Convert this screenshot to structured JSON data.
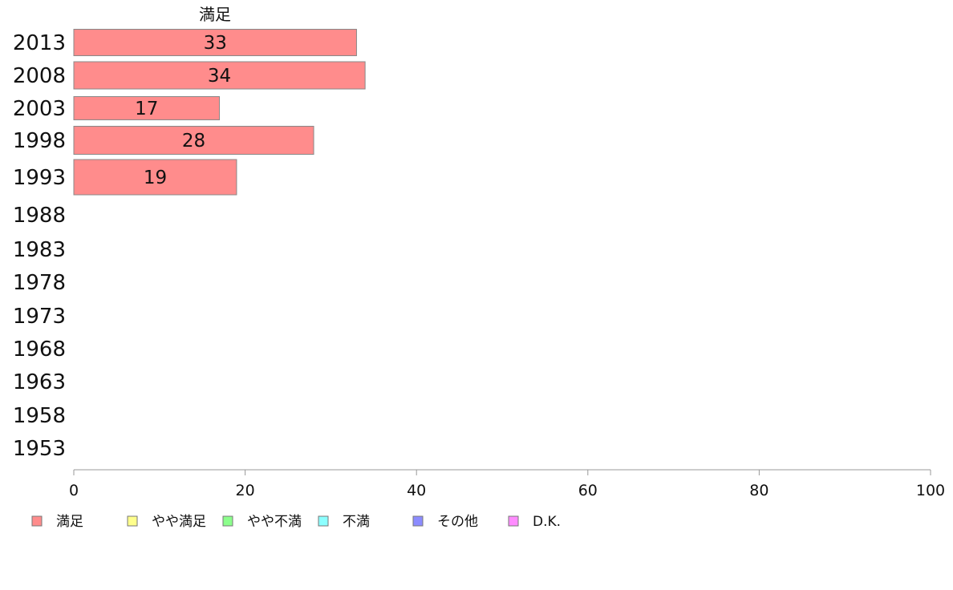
{
  "chart_data": {
    "type": "bar",
    "orientation": "horizontal",
    "title": "満足",
    "categories": [
      "2013",
      "2008",
      "2003",
      "1998",
      "1993",
      "1988",
      "1983",
      "1978",
      "1973",
      "1968",
      "1963",
      "1958",
      "1953"
    ],
    "series": [
      {
        "name": "満足",
        "color": "#ff8c8c",
        "values": [
          33,
          34,
          17,
          28,
          19,
          null,
          null,
          null,
          null,
          null,
          null,
          null,
          null
        ]
      }
    ],
    "xlim": [
      0,
      100
    ],
    "xticks": [
      0,
      20,
      40,
      60,
      80,
      100
    ],
    "grid": false,
    "legend": {
      "position": "bottom",
      "items": [
        {
          "label": "満足",
          "color": "#ff8c8c"
        },
        {
          "label": "やや満足",
          "color": "#ffff8c"
        },
        {
          "label": "やや不満",
          "color": "#8cff8c"
        },
        {
          "label": "不満",
          "color": "#8cffff"
        },
        {
          "label": "その他",
          "color": "#8c8cff"
        },
        {
          "label": "D.K.",
          "color": "#ff8cff"
        }
      ]
    }
  }
}
